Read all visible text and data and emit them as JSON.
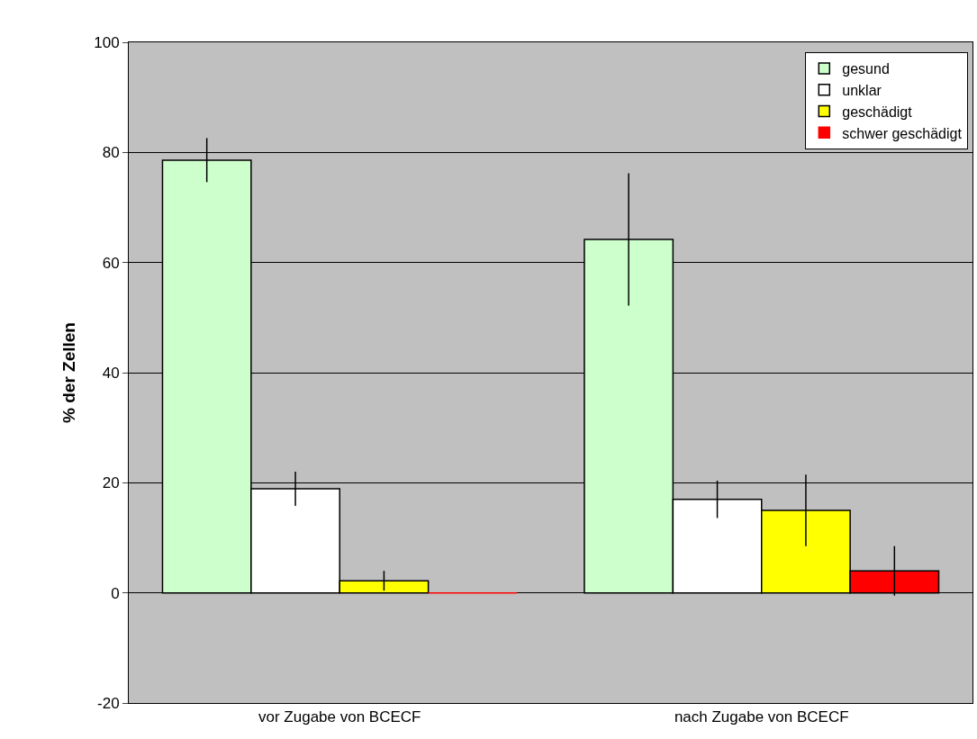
{
  "chart_data": {
    "type": "bar",
    "ylabel": "% der Zellen",
    "categories": [
      "vor Zugabe von BCECF",
      "nach Zugabe von BCECF"
    ],
    "series": [
      {
        "name": "gesund",
        "color": "#ccffcc",
        "values": [
          78.6,
          64.2
        ],
        "errors": [
          4.0,
          12.0
        ]
      },
      {
        "name": "unklar",
        "color": "#ffffff",
        "values": [
          18.9,
          17.0
        ],
        "errors": [
          3.1,
          3.4
        ]
      },
      {
        "name": "geschädigt",
        "color": "#ffff00",
        "values": [
          2.2,
          15.0
        ],
        "errors": [
          1.8,
          6.5
        ]
      },
      {
        "name": "schwer geschädigt",
        "color": "#ff0000",
        "values": [
          0,
          4.0
        ],
        "errors": [
          null,
          4.5
        ]
      }
    ],
    "ylim": [
      -20,
      100
    ],
    "yticks": [
      -20,
      0,
      20,
      40,
      60,
      80,
      100
    ],
    "grid": "y",
    "legend": "top right"
  }
}
